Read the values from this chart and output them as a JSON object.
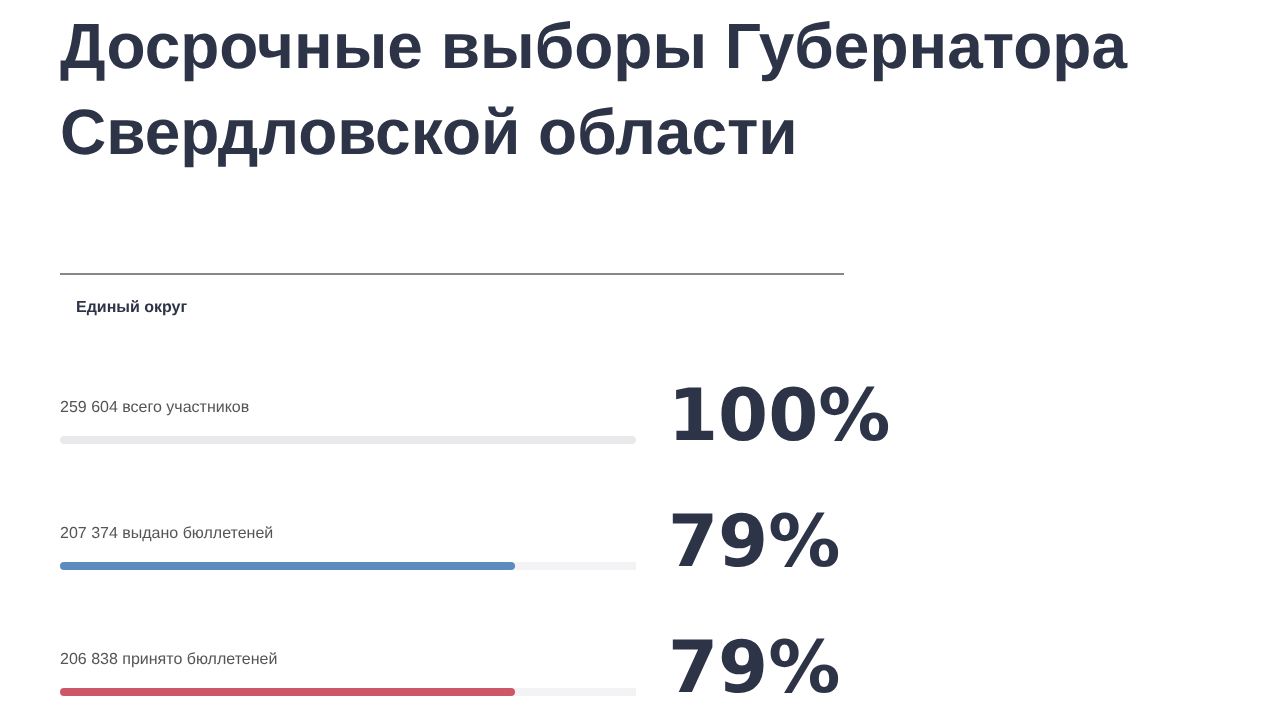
{
  "chart_data": {
    "type": "bar",
    "orientation": "horizontal",
    "title": "Досрочные выборы Губернатора Свердловской области",
    "subtitle": "Единый округ",
    "categories": [
      "259 604 всего участников",
      "207 374 выдано бюллетеней",
      "206 838 принято бюллетеней"
    ],
    "values": [
      100,
      79,
      79
    ],
    "colors": [
      "#e9e9eb",
      "#5b8bbf",
      "#cc5766"
    ],
    "value_labels": [
      "100%",
      "79%",
      "79%"
    ],
    "xlim": [
      0,
      100
    ],
    "tick_labels": false
  }
}
